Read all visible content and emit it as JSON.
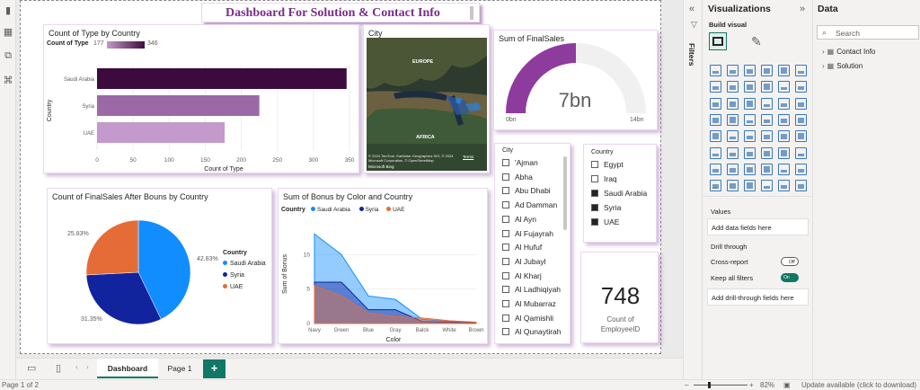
{
  "canvas": {
    "title": "Dashboard For Solution & Contact Info"
  },
  "bar_chart": {
    "title": "Count of Type by Country",
    "legend_label": "Count of Type",
    "legend_min": "177",
    "legend_max": "346",
    "ylabel": "Country",
    "xlabel": "Count of Type",
    "chart_data": {
      "type": "bar",
      "orientation": "horizontal",
      "categories": [
        "Saudi Arabia",
        "Syria",
        "UAE"
      ],
      "values": [
        346,
        225,
        177
      ],
      "xlim": [
        0,
        350
      ],
      "xticks": [
        "0",
        "50",
        "100",
        "150",
        "200",
        "250",
        "300",
        "350"
      ],
      "colors": [
        "#3d0a3d",
        "#9b6aa6",
        "#c39acb"
      ]
    }
  },
  "map": {
    "title": "City",
    "labels": [
      "EUROPE",
      "AFRICA"
    ],
    "attribution": "© 2024 TomTom, Earthstar Geographics SIO, © 2024 Microsoft Corporation, © OpenStreetMap",
    "terms": "Terms",
    "logo": "Microsoft Bing"
  },
  "gauge": {
    "title": "Sum of FinalSales",
    "value_label": "7bn",
    "min_label": "0bn",
    "max_label": "14bn",
    "chart_data": {
      "type": "gauge",
      "value": 7,
      "min": 0,
      "max": 14,
      "color": "#8e3b9e"
    }
  },
  "city_slicer": {
    "header": "City",
    "items": [
      "'Ajman",
      "Abha",
      "Abu Dhabi",
      "Ad Damman",
      "Al Ayn",
      "Al Fujayrah",
      "Al Hufuf",
      "Al Jubayl",
      "Al Kharj",
      "Al Ladhiqiyah",
      "Al Mubarraz",
      "Al Qamishli",
      "Al Qunaytirah"
    ]
  },
  "country_slicer": {
    "header": "Country",
    "items": [
      {
        "label": "Egypt",
        "checked": false
      },
      {
        "label": "Iraq",
        "checked": false
      },
      {
        "label": "Saudi Arabia",
        "checked": true
      },
      {
        "label": "Syria",
        "checked": true
      },
      {
        "label": "UAE",
        "checked": true
      }
    ]
  },
  "pie_chart": {
    "title": "Count of FinalSales After Bouns by Country",
    "legend_title": "Country",
    "labels": {
      "a": "42.83%",
      "b": "31.35%",
      "c": "25.83%"
    },
    "chart_data": {
      "type": "pie",
      "slices": [
        {
          "name": "Saudi Arabia",
          "value": 42.83,
          "color": "#118dff"
        },
        {
          "name": "Syria",
          "value": 31.35,
          "color": "#12239e"
        },
        {
          "name": "UAE",
          "value": 25.83,
          "color": "#e66c37"
        }
      ]
    }
  },
  "area_chart": {
    "title": "Sum of Bonus by Color and Country",
    "legend_title": "Country",
    "ylabel": "Sum of Bonus",
    "xlabel": "Color",
    "chart_data": {
      "type": "area",
      "x": [
        "Navy",
        "Green",
        "Blue",
        "Gray",
        "Balck",
        "White",
        "Brown"
      ],
      "ylim": [
        0,
        15
      ],
      "yticks": [
        "0",
        "5",
        "10"
      ],
      "series": [
        {
          "name": "Saudi Arabia",
          "color": "#118dff",
          "values": [
            13,
            10,
            4,
            3.5,
            0.6,
            0.3,
            0.1
          ]
        },
        {
          "name": "Syria",
          "color": "#12239e",
          "values": [
            6,
            6,
            2,
            2,
            0.3,
            0.2,
            0.1
          ]
        },
        {
          "name": "UAE",
          "color": "#e66c37",
          "values": [
            5.5,
            4,
            1.5,
            1,
            0.8,
            0.4,
            0.2
          ]
        }
      ]
    }
  },
  "card": {
    "value": "748",
    "label": "Count of EmployeeID"
  },
  "viz_pane": {
    "title": "Visualizations",
    "subtitle": "Build visual",
    "filters_label": "Filters",
    "more": "...",
    "values_label": "Values",
    "values_placeholder": "Add data fields here",
    "drill_label": "Drill through",
    "cross_report": "Cross-report",
    "cross_report_state": "Off",
    "keep_filters": "Keep all filters",
    "keep_filters_state": "On",
    "drill_placeholder": "Add drill-through fields here"
  },
  "data_pane": {
    "title": "Data",
    "search_placeholder": "Search",
    "tables": [
      "Contact Info",
      "Solution"
    ]
  },
  "tabs": {
    "items": [
      "Dashboard",
      "Page 1"
    ],
    "add": "+"
  },
  "status": {
    "page": "Page 1 of 2",
    "zoom": "82%",
    "update": "Update available (click to download)"
  }
}
